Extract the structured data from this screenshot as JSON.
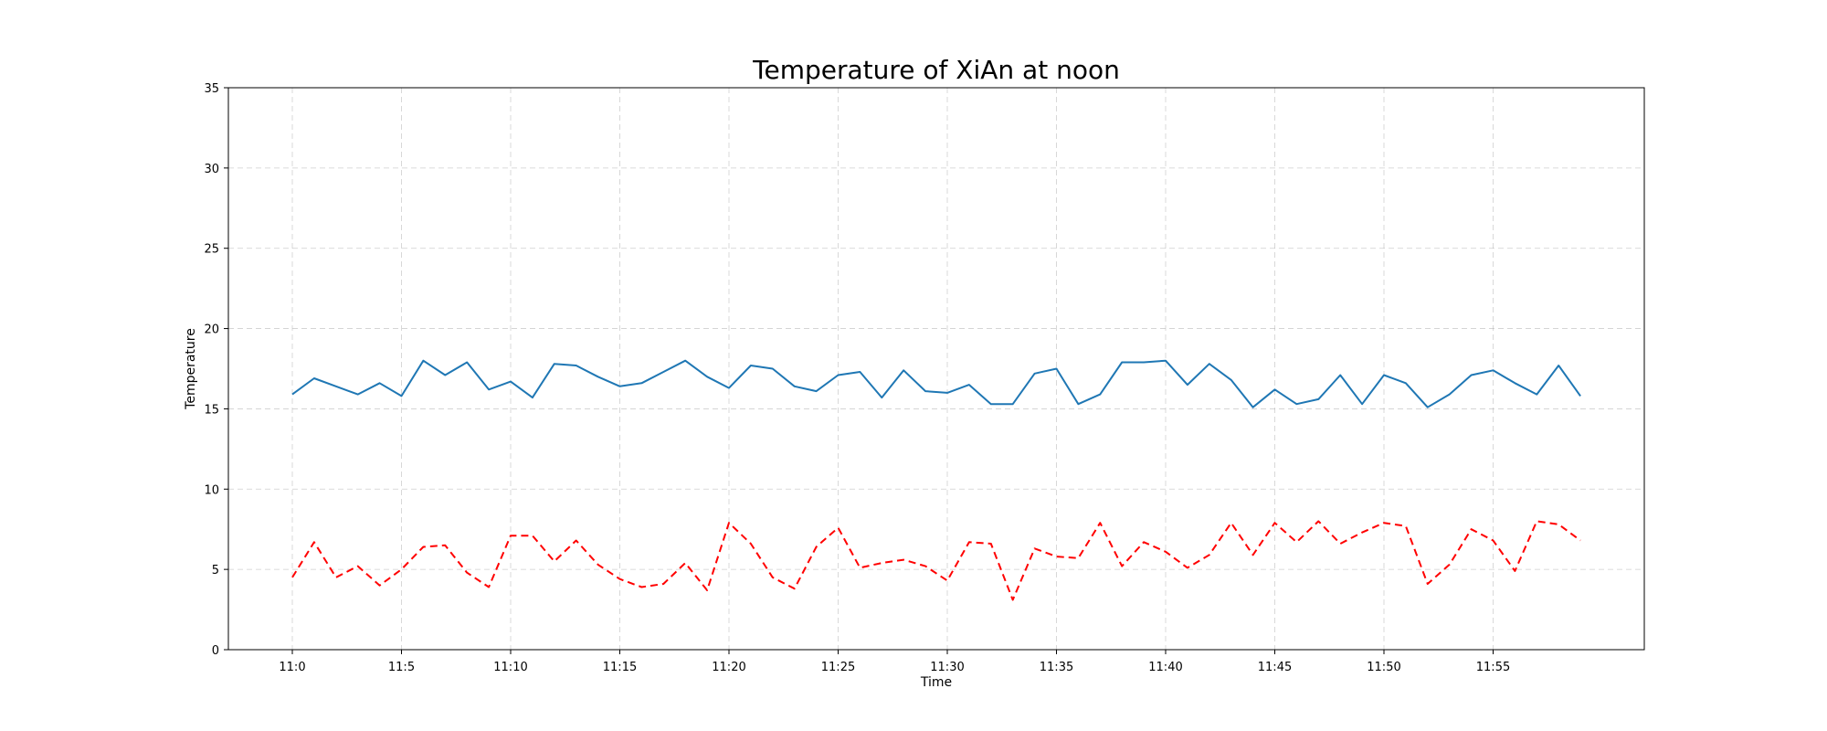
{
  "chart_data": {
    "type": "line",
    "title": "Temperature of XiAn at noon",
    "xlabel": "Time",
    "ylabel": "Temperature",
    "ylim": [
      0,
      35
    ],
    "yticks": [
      0,
      5,
      10,
      15,
      20,
      25,
      30,
      35
    ],
    "xtick_labels": [
      "11:0",
      "11:5",
      "11:10",
      "11:15",
      "11:20",
      "11:25",
      "11:30",
      "11:35",
      "11:40",
      "11:45",
      "11:50",
      "11:55"
    ],
    "xtick_every": 5,
    "grid": true,
    "series": [
      {
        "color": "#1f77b4",
        "style": "solid",
        "values": [
          15.9,
          16.9,
          16.4,
          15.9,
          16.6,
          15.8,
          18.0,
          17.1,
          17.9,
          16.2,
          16.7,
          15.7,
          17.8,
          17.7,
          17.0,
          16.4,
          16.6,
          17.3,
          18.0,
          17.0,
          16.3,
          17.7,
          17.5,
          16.4,
          16.1,
          17.1,
          17.3,
          15.7,
          17.4,
          16.1,
          16.0,
          16.5,
          15.3,
          15.3,
          17.2,
          17.5,
          15.3,
          15.9,
          17.9,
          17.9,
          18.0,
          16.5,
          17.8,
          16.8,
          15.1,
          16.2,
          15.3,
          15.6,
          17.1,
          15.3,
          17.1,
          16.6,
          15.1,
          15.9,
          17.1,
          17.4,
          16.6,
          15.9,
          17.7,
          15.8
        ]
      },
      {
        "color": "#ff0000",
        "style": "dashed",
        "values": [
          4.5,
          6.7,
          4.5,
          5.2,
          4.0,
          5.0,
          6.4,
          6.5,
          4.8,
          3.9,
          7.1,
          7.1,
          5.5,
          6.8,
          5.3,
          4.4,
          3.9,
          4.1,
          5.4,
          3.7,
          7.9,
          6.6,
          4.5,
          3.8,
          6.4,
          7.6,
          5.1,
          5.4,
          5.6,
          5.2,
          4.3,
          6.7,
          6.6,
          3.1,
          6.3,
          5.8,
          5.7,
          7.9,
          5.2,
          6.7,
          6.1,
          5.1,
          5.9,
          7.9,
          5.9,
          7.9,
          6.7,
          8.0,
          6.6,
          7.3,
          7.9,
          7.7,
          4.1,
          5.3,
          7.5,
          6.8,
          4.9,
          8.0,
          7.8,
          6.8
        ]
      }
    ]
  }
}
